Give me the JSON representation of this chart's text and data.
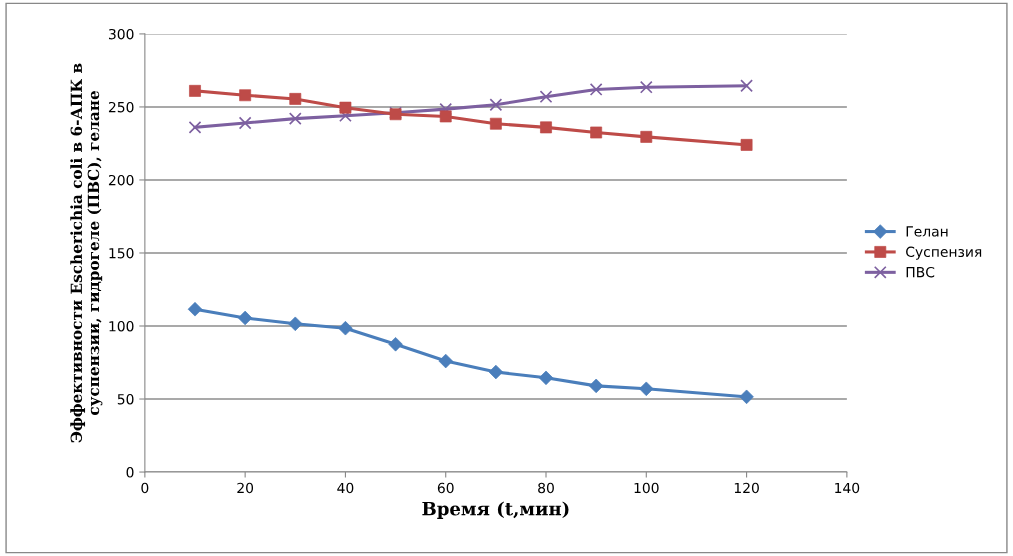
{
  "chart_data": {
    "type": "line",
    "xlabel": "Время (t,мин)",
    "ylabel": "Эффективности Escherichia coli в 6-АПК в\nсуспензии, гидрогеле (ПВС), гелане",
    "x": [
      10,
      20,
      30,
      40,
      50,
      60,
      70,
      80,
      90,
      100,
      120
    ],
    "series": [
      {
        "name": "Гелан",
        "color": "#4a7ebb",
        "marker": "diamond",
        "values": [
          111.5,
          105.5,
          101.5,
          98.5,
          87.5,
          76,
          68.5,
          64.5,
          59,
          57,
          51.5
        ]
      },
      {
        "name": "Суспензия",
        "color": "#be4b48",
        "marker": "square",
        "values": [
          261,
          258,
          255.5,
          249.5,
          245,
          243.5,
          238.5,
          236,
          232.5,
          229.5,
          224
        ]
      },
      {
        "name": "ПВС",
        "color": "#7d60a0",
        "marker": "cross",
        "values": [
          236,
          239,
          242,
          244,
          246,
          248.5,
          251.5,
          257,
          262,
          263.5,
          264.5
        ]
      }
    ],
    "xlim": [
      0,
      140
    ],
    "xticks": [
      0,
      20,
      40,
      60,
      80,
      100,
      120,
      140
    ],
    "ylim": [
      0,
      300
    ],
    "yticks": [
      0,
      50,
      100,
      150,
      200,
      250,
      300
    ],
    "grid": "y",
    "legend": "right"
  }
}
